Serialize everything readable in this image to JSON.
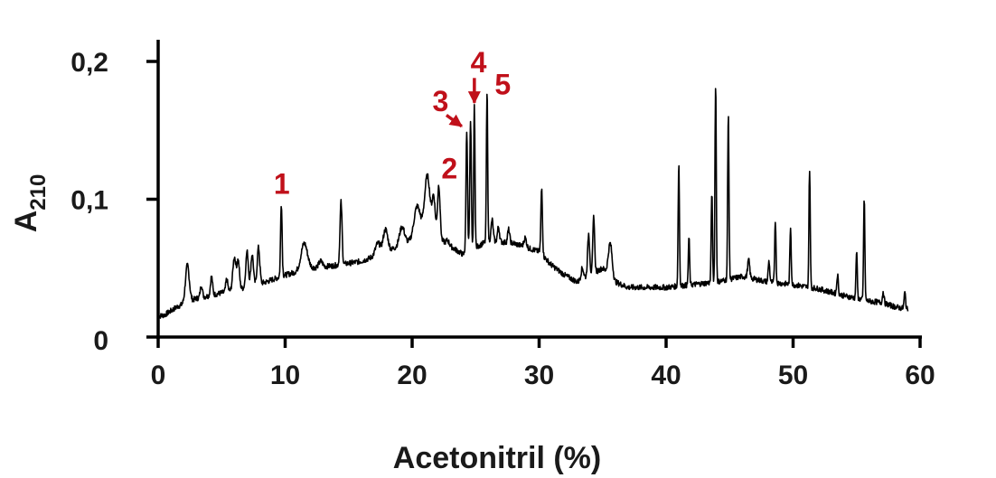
{
  "colors": {
    "axis": "#000000",
    "trace": "#000000",
    "annotation": "#c0101a"
  },
  "chart_data": {
    "type": "line",
    "xlabel": "Acetonitril (%)",
    "ylabel": {
      "base": "A",
      "subscript": "210"
    },
    "xlim": [
      0,
      60
    ],
    "ylim": [
      0,
      0.2
    ],
    "x_ticks": [
      {
        "value": 0,
        "label": "0"
      },
      {
        "value": 10,
        "label": "10"
      },
      {
        "value": 20,
        "label": "20"
      },
      {
        "value": 30,
        "label": "30"
      },
      {
        "value": 40,
        "label": "40"
      },
      {
        "value": 50,
        "label": "50"
      },
      {
        "value": 60,
        "label": "60"
      }
    ],
    "y_ticks": [
      {
        "value": 0,
        "label": "0"
      },
      {
        "value": 0.1,
        "label": "0,1"
      },
      {
        "value": 0.2,
        "label": "0,2"
      }
    ],
    "grid": false,
    "baseline": [
      [
        0,
        0.015
      ],
      [
        0.5,
        0.016
      ],
      [
        1.5,
        0.022
      ],
      [
        3,
        0.028
      ],
      [
        5,
        0.032
      ],
      [
        7,
        0.036
      ],
      [
        8.5,
        0.04
      ],
      [
        10,
        0.045
      ],
      [
        12,
        0.05
      ],
      [
        14,
        0.052
      ],
      [
        16,
        0.055
      ],
      [
        17.5,
        0.06
      ],
      [
        19,
        0.066
      ],
      [
        20,
        0.07
      ],
      [
        21,
        0.074
      ],
      [
        22,
        0.072
      ],
      [
        23,
        0.066
      ],
      [
        24,
        0.06
      ],
      [
        25,
        0.065
      ],
      [
        26,
        0.07
      ],
      [
        28,
        0.068
      ],
      [
        30,
        0.062
      ],
      [
        31,
        0.052
      ],
      [
        32,
        0.045
      ],
      [
        33,
        0.04
      ],
      [
        34,
        0.045
      ],
      [
        35,
        0.05
      ],
      [
        36,
        0.04
      ],
      [
        37,
        0.036
      ],
      [
        40,
        0.036
      ],
      [
        42,
        0.038
      ],
      [
        44,
        0.04
      ],
      [
        46,
        0.044
      ],
      [
        48,
        0.04
      ],
      [
        50,
        0.038
      ],
      [
        52,
        0.035
      ],
      [
        54,
        0.03
      ],
      [
        56,
        0.026
      ],
      [
        57,
        0.025
      ],
      [
        58,
        0.022
      ],
      [
        59,
        0.02
      ]
    ],
    "peaks": [
      {
        "x": 2.3,
        "y": 0.052,
        "w": 0.15
      },
      {
        "x": 3.4,
        "y": 0.038,
        "w": 0.08
      },
      {
        "x": 4.2,
        "y": 0.044,
        "w": 0.08
      },
      {
        "x": 5.4,
        "y": 0.042,
        "w": 0.08
      },
      {
        "x": 6.0,
        "y": 0.058,
        "w": 0.12
      },
      {
        "x": 6.3,
        "y": 0.055,
        "w": 0.1
      },
      {
        "x": 7.0,
        "y": 0.062,
        "w": 0.1
      },
      {
        "x": 7.4,
        "y": 0.06,
        "w": 0.1
      },
      {
        "x": 7.9,
        "y": 0.065,
        "w": 0.1
      },
      {
        "x": 9.7,
        "y": 0.097,
        "w": 0.06
      },
      {
        "x": 11.5,
        "y": 0.068,
        "w": 0.25
      },
      {
        "x": 12.8,
        "y": 0.055,
        "w": 0.15
      },
      {
        "x": 14.4,
        "y": 0.098,
        "w": 0.08
      },
      {
        "x": 17.3,
        "y": 0.068,
        "w": 0.2
      },
      {
        "x": 17.9,
        "y": 0.078,
        "w": 0.18
      },
      {
        "x": 19.2,
        "y": 0.08,
        "w": 0.2
      },
      {
        "x": 20.4,
        "y": 0.095,
        "w": 0.25
      },
      {
        "x": 21.2,
        "y": 0.117,
        "w": 0.22
      },
      {
        "x": 21.7,
        "y": 0.1,
        "w": 0.12
      },
      {
        "x": 22.1,
        "y": 0.11,
        "w": 0.1
      },
      {
        "x": 22.8,
        "y": 0.07,
        "w": 0.12
      },
      {
        "x": 24.3,
        "y": 0.15,
        "w": 0.06
      },
      {
        "x": 24.6,
        "y": 0.155,
        "w": 0.06
      },
      {
        "x": 24.9,
        "y": 0.168,
        "w": 0.05
      },
      {
        "x": 25.9,
        "y": 0.178,
        "w": 0.05
      },
      {
        "x": 26.3,
        "y": 0.085,
        "w": 0.08
      },
      {
        "x": 26.8,
        "y": 0.08,
        "w": 0.08
      },
      {
        "x": 27.6,
        "y": 0.078,
        "w": 0.08
      },
      {
        "x": 28.9,
        "y": 0.072,
        "w": 0.1
      },
      {
        "x": 30.2,
        "y": 0.108,
        "w": 0.06
      },
      {
        "x": 33.4,
        "y": 0.05,
        "w": 0.1
      },
      {
        "x": 33.9,
        "y": 0.075,
        "w": 0.08
      },
      {
        "x": 34.3,
        "y": 0.088,
        "w": 0.07
      },
      {
        "x": 35.6,
        "y": 0.068,
        "w": 0.15
      },
      {
        "x": 41.0,
        "y": 0.126,
        "w": 0.05
      },
      {
        "x": 41.8,
        "y": 0.072,
        "w": 0.05
      },
      {
        "x": 43.6,
        "y": 0.105,
        "w": 0.05
      },
      {
        "x": 43.9,
        "y": 0.185,
        "w": 0.05
      },
      {
        "x": 44.9,
        "y": 0.162,
        "w": 0.05
      },
      {
        "x": 46.5,
        "y": 0.056,
        "w": 0.08
      },
      {
        "x": 48.1,
        "y": 0.055,
        "w": 0.06
      },
      {
        "x": 48.6,
        "y": 0.085,
        "w": 0.05
      },
      {
        "x": 49.8,
        "y": 0.08,
        "w": 0.05
      },
      {
        "x": 51.3,
        "y": 0.122,
        "w": 0.05
      },
      {
        "x": 53.5,
        "y": 0.045,
        "w": 0.06
      },
      {
        "x": 55.0,
        "y": 0.062,
        "w": 0.05
      },
      {
        "x": 55.6,
        "y": 0.1,
        "w": 0.05
      },
      {
        "x": 57.1,
        "y": 0.033,
        "w": 0.06
      },
      {
        "x": 58.8,
        "y": 0.032,
        "w": 0.06
      }
    ],
    "annotations": [
      {
        "label": "1",
        "x": 9.1,
        "y": 0.104,
        "arrow": null
      },
      {
        "label": "2",
        "x": 22.3,
        "y": 0.115,
        "arrow": null
      },
      {
        "label": "3",
        "x": 21.6,
        "y": 0.164,
        "arrow": {
          "from": [
            22.7,
            0.161
          ],
          "to": [
            23.9,
            0.153
          ]
        }
      },
      {
        "label": "4",
        "x": 24.6,
        "y": 0.192,
        "arrow": {
          "from": [
            24.9,
            0.188
          ],
          "to": [
            24.9,
            0.17
          ]
        }
      },
      {
        "label": "5",
        "x": 26.5,
        "y": 0.176,
        "arrow": null
      }
    ]
  }
}
